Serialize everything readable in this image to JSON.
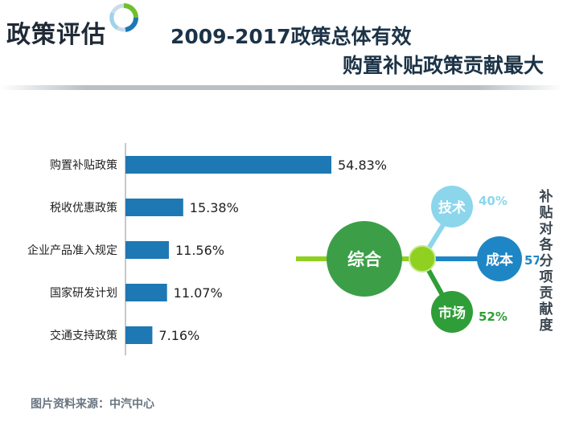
{
  "header": {
    "label": "政策评估",
    "title_line1": "2009-2017政策总体有效",
    "title_line2": "购置补贴政策贡献最大"
  },
  "footer": {
    "source": "图片资料来源：中汽中心"
  },
  "chart_data": [
    {
      "type": "bar",
      "orientation": "horizontal",
      "title": "",
      "xlabel": "",
      "ylabel": "",
      "xlim": [
        0,
        54.83
      ],
      "categories": [
        "购置补贴政策",
        "税收优惠政策",
        "企业产品准入规定",
        "国家研发计划",
        "交通支持政策"
      ],
      "values": [
        54.83,
        15.38,
        11.56,
        11.07,
        7.16
      ],
      "value_labels": [
        "54.83%",
        "15.38%",
        "11.56%",
        "11.07%",
        "7.16%"
      ],
      "colors": {
        "bar": "#1e78b4",
        "axis": "#b5b5b5"
      }
    },
    {
      "type": "diagram",
      "title": "补贴对各分项贡献度",
      "center": "综合",
      "nodes": [
        {
          "name": "技术",
          "value": 40,
          "label": "40%",
          "color": "#8cd6ec"
        },
        {
          "name": "成本",
          "value": 57,
          "label": "57%",
          "color": "#1f86c6"
        },
        {
          "name": "市场",
          "value": 52,
          "label": "52%",
          "color": "#2f9e38"
        }
      ],
      "colors": {
        "center": "#3c9f48",
        "hub": "#8fd021"
      }
    }
  ]
}
